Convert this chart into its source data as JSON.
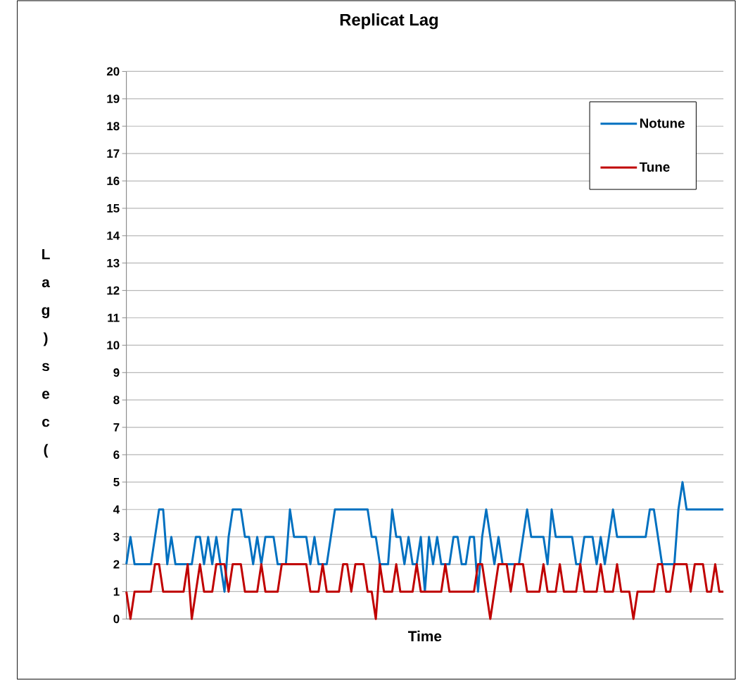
{
  "chart_data": {
    "type": "line",
    "title": "Replicat Lag",
    "xlabel": "Time",
    "ylabel": "Lag)sec(",
    "categories": [
      null,
      null,
      null,
      null,
      null,
      null,
      null,
      null,
      null,
      null,
      null,
      null,
      null,
      null,
      null,
      null,
      null,
      null,
      null,
      null,
      null,
      null,
      null,
      null,
      null,
      null,
      null,
      null,
      null,
      null,
      null,
      null,
      null,
      null,
      null,
      null,
      null,
      null,
      null,
      null,
      null,
      null,
      null,
      null,
      null,
      null,
      null,
      null,
      null,
      null,
      null,
      null,
      null,
      null,
      null,
      null,
      null,
      null,
      null,
      null,
      null,
      null,
      null,
      null,
      null,
      null,
      null,
      null,
      null,
      null,
      null,
      null,
      null,
      null,
      null,
      null,
      null,
      null,
      null,
      null,
      null,
      null,
      null,
      null,
      null,
      null,
      null,
      null,
      null,
      null,
      null,
      null,
      null,
      null,
      null,
      null,
      null,
      null,
      null,
      null,
      null,
      null,
      null,
      null,
      null,
      null,
      null,
      null,
      null,
      null,
      null,
      null,
      null,
      null,
      null,
      null,
      null,
      null,
      null,
      null,
      null,
      null,
      null,
      null,
      null,
      null,
      null,
      null,
      null,
      null,
      null,
      null,
      null,
      null,
      null,
      null,
      null,
      null,
      null,
      null,
      null,
      null,
      null,
      null,
      null,
      null,
      null
    ],
    "series": [
      {
        "name": "Notune",
        "color": "#0070c0",
        "values": [
          2,
          3,
          2,
          2,
          2,
          2,
          2,
          3,
          4,
          4,
          2,
          3,
          2,
          2,
          2,
          2,
          2,
          3,
          3,
          2,
          3,
          2,
          3,
          2,
          1,
          3,
          4,
          4,
          4,
          3,
          3,
          2,
          3,
          2,
          3,
          3,
          3,
          2,
          2,
          2,
          4,
          3,
          3,
          3,
          3,
          2,
          3,
          2,
          2,
          2,
          3,
          4,
          4,
          4,
          4,
          4,
          4,
          4,
          4,
          4,
          3,
          3,
          2,
          2,
          2,
          4,
          3,
          3,
          2,
          3,
          2,
          2,
          3,
          1,
          3,
          2,
          3,
          2,
          2,
          2,
          3,
          3,
          2,
          2,
          3,
          3,
          1,
          3,
          4,
          3,
          2,
          3,
          2,
          2,
          2,
          2,
          2,
          3,
          4,
          3,
          3,
          3,
          3,
          2,
          4,
          3,
          3,
          3,
          3,
          3,
          2,
          2,
          3,
          3,
          3,
          2,
          3,
          2,
          3,
          4,
          3,
          3,
          3,
          3,
          3,
          3,
          3,
          3,
          4,
          4,
          3,
          2,
          2,
          2,
          2,
          4,
          5,
          4,
          4,
          4,
          4,
          4,
          4,
          4,
          4,
          4,
          4
        ]
      },
      {
        "name": "Tune",
        "color": "#c00000",
        "values": [
          1,
          0,
          1,
          1,
          1,
          1,
          1,
          2,
          2,
          1,
          1,
          1,
          1,
          1,
          1,
          2,
          0,
          1,
          2,
          1,
          1,
          1,
          2,
          2,
          2,
          1,
          2,
          2,
          2,
          1,
          1,
          1,
          1,
          2,
          1,
          1,
          1,
          1,
          2,
          2,
          2,
          2,
          2,
          2,
          2,
          1,
          1,
          1,
          2,
          1,
          1,
          1,
          1,
          2,
          2,
          1,
          2,
          2,
          2,
          1,
          1,
          0,
          2,
          1,
          1,
          1,
          2,
          1,
          1,
          1,
          1,
          2,
          1,
          1,
          1,
          1,
          1,
          1,
          2,
          1,
          1,
          1,
          1,
          1,
          1,
          1,
          2,
          2,
          1,
          0,
          1,
          2,
          2,
          2,
          1,
          2,
          2,
          2,
          1,
          1,
          1,
          1,
          2,
          1,
          1,
          1,
          2,
          1,
          1,
          1,
          1,
          2,
          1,
          1,
          1,
          1,
          2,
          1,
          1,
          1,
          2,
          1,
          1,
          1,
          0,
          1,
          1,
          1,
          1,
          1,
          2,
          2,
          1,
          1,
          2,
          2,
          2,
          2,
          1,
          2,
          2,
          2,
          1,
          1,
          2,
          1,
          1
        ]
      }
    ],
    "ylim": [
      0,
      20
    ],
    "yticks": [
      0,
      1,
      2,
      3,
      4,
      5,
      6,
      7,
      8,
      9,
      10,
      11,
      12,
      13,
      14,
      15,
      16,
      17,
      18,
      19,
      20
    ],
    "grid": "y",
    "legend": "top right",
    "tick_labels": "y",
    "marker": "none"
  }
}
